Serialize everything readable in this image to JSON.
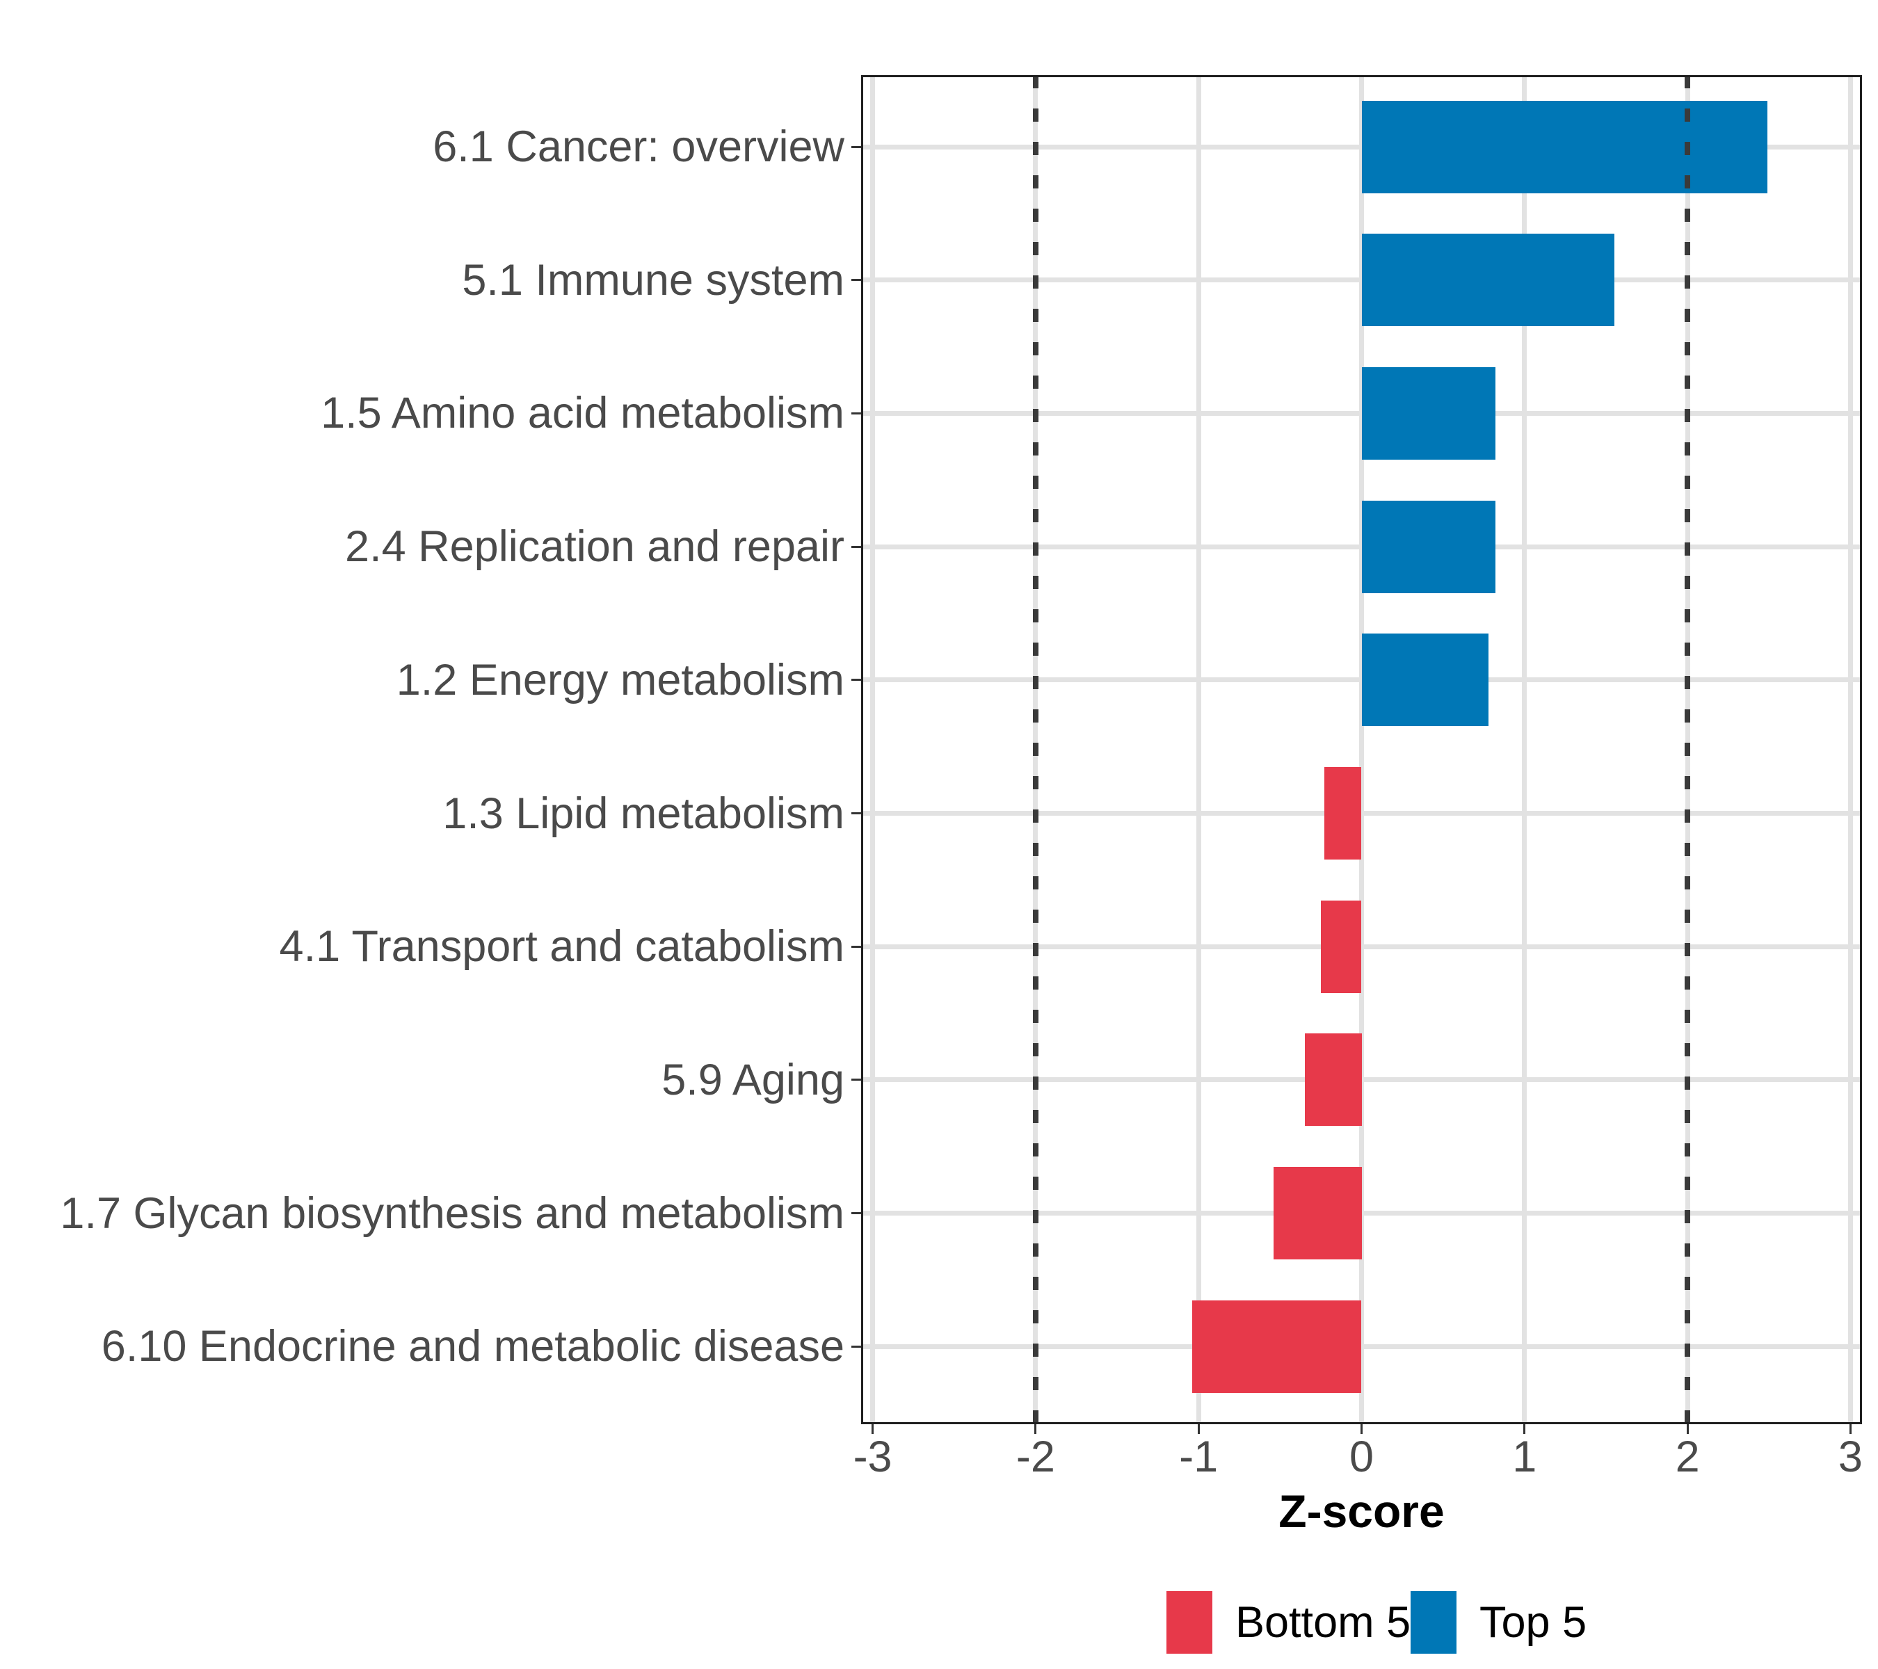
{
  "chart_data": {
    "type": "bar",
    "orientation": "horizontal",
    "title": "",
    "xlabel": "Z-score",
    "ylabel": "",
    "categories": [
      "6.1 Cancer: overview",
      "5.1 Immune system",
      "1.5 Amino acid metabolism",
      "2.4 Replication and repair",
      "1.2 Energy metabolism",
      "1.3 Lipid metabolism",
      "4.1 Transport and catabolism",
      "5.9 Aging",
      "1.7 Glycan biosynthesis and metabolism",
      "6.10 Endocrine and metabolic disease"
    ],
    "values": [
      2.49,
      1.55,
      0.82,
      0.82,
      0.78,
      -0.23,
      -0.25,
      -0.35,
      -0.54,
      -1.04
    ],
    "groups": [
      "Top 5",
      "Top 5",
      "Top 5",
      "Top 5",
      "Top 5",
      "Bottom 5",
      "Bottom 5",
      "Bottom 5",
      "Bottom 5",
      "Bottom 5"
    ],
    "group_colors": {
      "Top 5": "#0077B6",
      "Bottom 5": "#E7394A"
    },
    "x_ticks": [
      -3,
      -2,
      -1,
      0,
      1,
      2,
      3
    ],
    "xlim": [
      -3.07,
      3.07
    ],
    "reference_lines": [
      -2,
      2
    ],
    "reference_line_style": "dashed",
    "bar_fraction": 0.7,
    "grid": "major-only",
    "legend": {
      "position": "bottom",
      "items": [
        {
          "label": "Bottom 5",
          "color": "#E7394A"
        },
        {
          "label": "Top 5",
          "color": "#0077B6"
        }
      ]
    }
  },
  "theme": {
    "background": "#FFFFFF",
    "grid_color": "#E2E2E2",
    "ref_line_color": "#3A3A3A",
    "panel_border_color": "#1F1F1F",
    "axis_text_color": "#4A4A4A",
    "tick_color": "#333333",
    "title_color": "#000000"
  }
}
